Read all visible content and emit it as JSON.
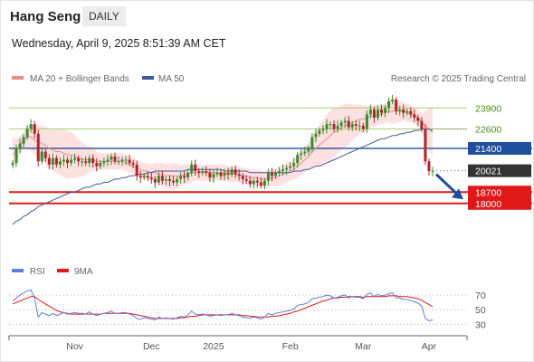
{
  "header": {
    "title": "Hang Seng",
    "period": "DAILY",
    "date": "Wednesday, April 9, 2025 8:51:39 AM CET"
  },
  "legend": {
    "ma20_label": "MA 20 + Bollinger Bands",
    "ma50_label": "MA 50",
    "credit": "Research © 2025 Trading Central",
    "rsi_label": "RSI",
    "rsi_ma_label": "9MA"
  },
  "colors": {
    "candle_up": "#3a8a2e",
    "candle_down": "#a8272b",
    "ma20": "#f08a8a",
    "bollinger_fill": "#fde1e1",
    "ma50": "#3b5b9a",
    "pivot": "#1f4e9a",
    "support": "#e01818",
    "resistance": "#a8d070",
    "current": "#333333",
    "rsi": "#5b7ee0",
    "rsi_ma": "#e01818"
  },
  "chart_data": {
    "type": "candlestick",
    "price_axis": {
      "min": 14800,
      "max": 25200
    },
    "x_axis_labels": [
      "Nov",
      "Dec",
      "2025",
      "Feb",
      "Mar",
      "Apr"
    ],
    "levels": [
      {
        "label": "23900",
        "value": 23900,
        "kind": "resistance"
      },
      {
        "label": "22600",
        "value": 22600,
        "kind": "resistance"
      },
      {
        "label": "21400",
        "value": 21400,
        "kind": "pivot"
      },
      {
        "label": "20021",
        "value": 20021,
        "kind": "current"
      },
      {
        "label": "18700",
        "value": 18700,
        "kind": "support"
      },
      {
        "label": "18000",
        "value": 18000,
        "kind": "support"
      }
    ],
    "closes": [
      20500,
      21400,
      21700,
      22100,
      22600,
      22900,
      22300,
      20600,
      21200,
      20800,
      20400,
      20800,
      20400,
      20600,
      20700,
      20500,
      20700,
      20800,
      20600,
      20600,
      20500,
      20800,
      20500,
      20300,
      20500,
      20600,
      20700,
      20900,
      20600,
      20600,
      20700,
      20700,
      20500,
      20400,
      19700,
      19600,
      19700,
      19600,
      19500,
      19300,
      19700,
      19400,
      19500,
      19400,
      19300,
      19500,
      19700,
      19600,
      19900,
      20400,
      20000,
      19900,
      20000,
      19900,
      19600,
      19800,
      19900,
      19700,
      19900,
      19800,
      20100,
      19800,
      19700,
      19500,
      19400,
      19200,
      19400,
      19300,
      19100,
      19400,
      19900,
      19700,
      19900,
      20000,
      20100,
      20200,
      20300,
      20500,
      21000,
      21100,
      21200,
      21400,
      22100,
      22300,
      22500,
      22600,
      22900,
      22900,
      22600,
      22800,
      23000,
      23100,
      22700,
      22900,
      22800,
      22800,
      22600,
      23500,
      23800,
      23300,
      23800,
      23600,
      23900,
      24300,
      24400,
      23700,
      23800,
      23600,
      23700,
      23500,
      23300,
      23100,
      22600,
      20600,
      20000,
      20021
    ],
    "ma20": [
      21000,
      21200,
      21600,
      21900,
      22100,
      22100,
      21900,
      21800,
      21700,
      21600,
      21400,
      21300,
      21200,
      21200,
      21100,
      21000,
      21000,
      20900,
      20800,
      20700,
      20700,
      20700,
      20700,
      20600,
      20600,
      20600,
      20600,
      20600,
      20600,
      20600,
      20600,
      20500,
      20400,
      20300,
      20200,
      20100,
      20000,
      20000,
      19900,
      19900,
      19800,
      19800,
      19700,
      19700,
      19700,
      19700,
      19700,
      19800,
      19800,
      19900,
      19900,
      19900,
      19900,
      19900,
      19900,
      19900,
      19900,
      19900,
      19900,
      19800,
      19800,
      19800,
      19800,
      19700,
      19700,
      19600,
      19600,
      19600,
      19500,
      19500,
      19500,
      19600,
      19600,
      19700,
      19800,
      19900,
      20000,
      20100,
      20300,
      20500,
      20700,
      20900,
      21200,
      21400,
      21600,
      21800,
      22000,
      22200,
      22400,
      22500,
      22700,
      22800,
      22900,
      23000,
      23100,
      23200,
      23200,
      23300,
      23400,
      23400,
      23500,
      23500,
      23600,
      23700,
      23700,
      23700,
      23700,
      23700,
      23600,
      23500,
      23400,
      23300,
      23000,
      22800,
      22600,
      22400
    ],
    "ma50": [
      16700,
      16900,
      17000,
      17200,
      17300,
      17500,
      17600,
      17800,
      17900,
      18000,
      18100,
      18200,
      18300,
      18400,
      18500,
      18600,
      18700,
      18700,
      18800,
      18900,
      19000,
      19000,
      19100,
      19200,
      19200,
      19300,
      19300,
      19400,
      19500,
      19500,
      19600,
      19600,
      19700,
      19700,
      19800,
      19800,
      19800,
      19900,
      19900,
      20000,
      20000,
      20000,
      20000,
      20000,
      20000,
      20000,
      20000,
      20000,
      20100,
      20100,
      20100,
      20100,
      20100,
      20100,
      20100,
      20100,
      20100,
      20100,
      20000,
      20000,
      20000,
      20000,
      20000,
      20000,
      20000,
      19900,
      19900,
      19900,
      19900,
      19900,
      19900,
      19900,
      19900,
      19900,
      19900,
      19900,
      19900,
      20000,
      20000,
      20000,
      20100,
      20100,
      20200,
      20300,
      20300,
      20400,
      20500,
      20600,
      20700,
      20800,
      20900,
      21000,
      21100,
      21200,
      21300,
      21400,
      21500,
      21600,
      21700,
      21800,
      21900,
      22000,
      22000,
      22100,
      22200,
      22200,
      22300,
      22300,
      22400,
      22400,
      22500,
      22500,
      22600,
      22600,
      22600,
      22500
    ],
    "rsi_axis": {
      "min": 18,
      "max": 90,
      "ticks": [
        70,
        50,
        30
      ]
    },
    "rsi": [
      62,
      66,
      70,
      73,
      76,
      77,
      66,
      40,
      46,
      44,
      42,
      45,
      42,
      44,
      46,
      44,
      45,
      46,
      45,
      45,
      44,
      47,
      44,
      42,
      44,
      45,
      46,
      48,
      45,
      45,
      46,
      46,
      44,
      42,
      38,
      37,
      39,
      38,
      37,
      36,
      40,
      38,
      39,
      38,
      37,
      39,
      41,
      40,
      43,
      48,
      44,
      43,
      44,
      43,
      41,
      42,
      43,
      42,
      43,
      43,
      45,
      43,
      42,
      40,
      39,
      38,
      40,
      39,
      37,
      40,
      45,
      43,
      45,
      46,
      47,
      48,
      49,
      51,
      56,
      57,
      58,
      60,
      65,
      66,
      67,
      68,
      70,
      69,
      66,
      67,
      69,
      70,
      66,
      68,
      67,
      67,
      65,
      71,
      73,
      68,
      71,
      69,
      70,
      72,
      73,
      66,
      66,
      64,
      64,
      63,
      61,
      59,
      55,
      38,
      35,
      36
    ],
    "rsi_ma": [
      58,
      60,
      62,
      64,
      66,
      68,
      68,
      64,
      61,
      58,
      55,
      52,
      49,
      47,
      46,
      45,
      44,
      44,
      44,
      44,
      44,
      44,
      44,
      44,
      44,
      45,
      45,
      45,
      45,
      45,
      45,
      45,
      45,
      44,
      43,
      42,
      41,
      40,
      39,
      38,
      38,
      38,
      38,
      38,
      38,
      38,
      39,
      39,
      40,
      41,
      41,
      42,
      43,
      43,
      43,
      43,
      43,
      43,
      43,
      43,
      43,
      43,
      43,
      42,
      42,
      41,
      41,
      40,
      40,
      40,
      40,
      41,
      41,
      42,
      43,
      44,
      45,
      47,
      48,
      50,
      52,
      54,
      56,
      58,
      60,
      62,
      63,
      65,
      66,
      66,
      67,
      67,
      68,
      68,
      68,
      68,
      67,
      68,
      68,
      68,
      68,
      68,
      68,
      69,
      69,
      69,
      68,
      68,
      68,
      67,
      66,
      65,
      63,
      60,
      57,
      54
    ]
  }
}
